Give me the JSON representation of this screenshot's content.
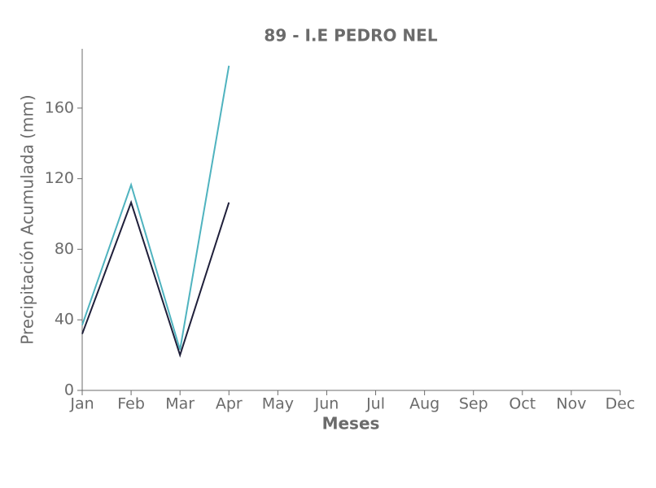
{
  "chart_data": {
    "type": "line",
    "title": "89 - I.E PEDRO NEL",
    "xlabel": "Meses",
    "ylabel": "Precipitación Acumulada (mm)",
    "categories": [
      "Jan",
      "Feb",
      "Mar",
      "Apr",
      "May",
      "Jun",
      "Jul",
      "Aug",
      "Sep",
      "Oct",
      "Nov",
      "Dec"
    ],
    "series": [
      {
        "color": "#4fb3bf",
        "values": [
          37,
          116.5,
          23,
          184,
          null,
          null,
          null,
          null,
          null,
          null,
          null,
          null
        ]
      },
      {
        "color": "#1f1f3a",
        "values": [
          32,
          106.5,
          20,
          106.5,
          null,
          null,
          null,
          null,
          null,
          null,
          null,
          null
        ]
      }
    ],
    "ylim": [
      0,
      193.6
    ],
    "yticks": [
      0,
      40,
      80,
      120,
      160
    ],
    "grid": false
  }
}
